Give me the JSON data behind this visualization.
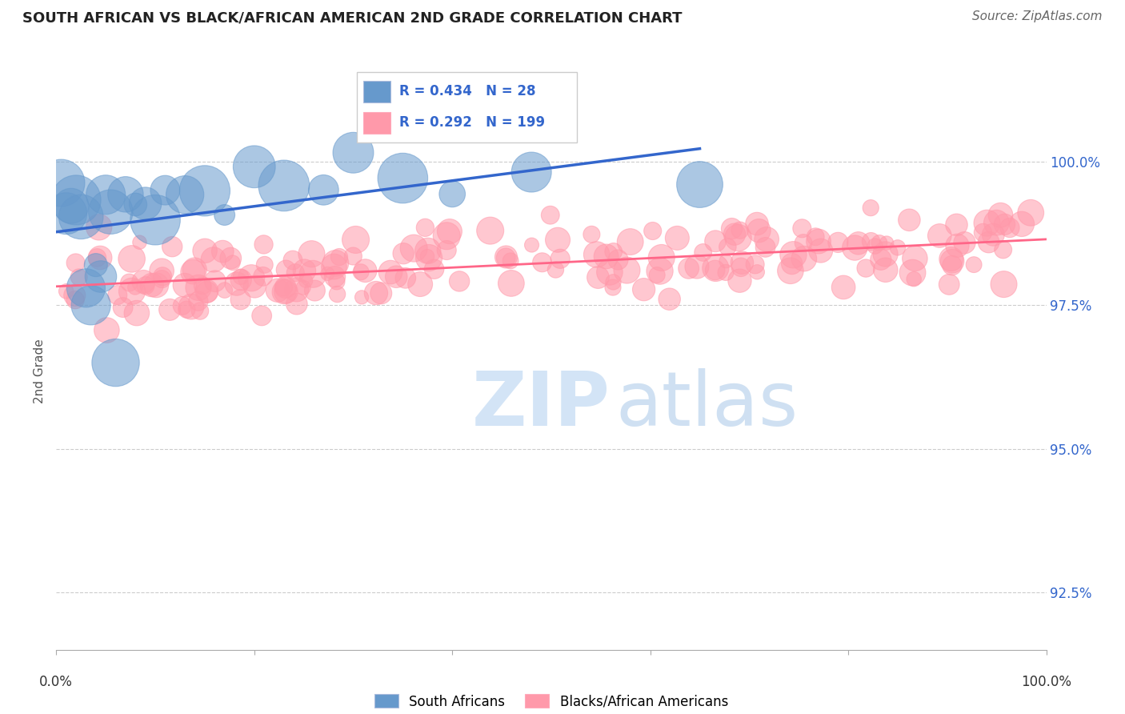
{
  "title": "SOUTH AFRICAN VS BLACK/AFRICAN AMERICAN 2ND GRADE CORRELATION CHART",
  "source": "Source: ZipAtlas.com",
  "ylabel": "2nd Grade",
  "y_ticks": [
    92.5,
    95.0,
    97.5,
    100.0
  ],
  "xlim": [
    0,
    100
  ],
  "ylim": [
    91.5,
    101.2
  ],
  "blue_R": 0.434,
  "blue_N": 28,
  "pink_R": 0.292,
  "pink_N": 199,
  "blue_color": "#6699cc",
  "pink_color": "#ff99aa",
  "blue_line_color": "#3366cc",
  "pink_line_color": "#ff6688",
  "legend_label_blue": "South Africans",
  "legend_label_pink": "Blacks/African Americans",
  "watermark_zip": "ZIP",
  "watermark_atlas": "atlas",
  "title_fontsize": 13,
  "source_fontsize": 11,
  "tick_label_fontsize": 12,
  "ylabel_fontsize": 11
}
